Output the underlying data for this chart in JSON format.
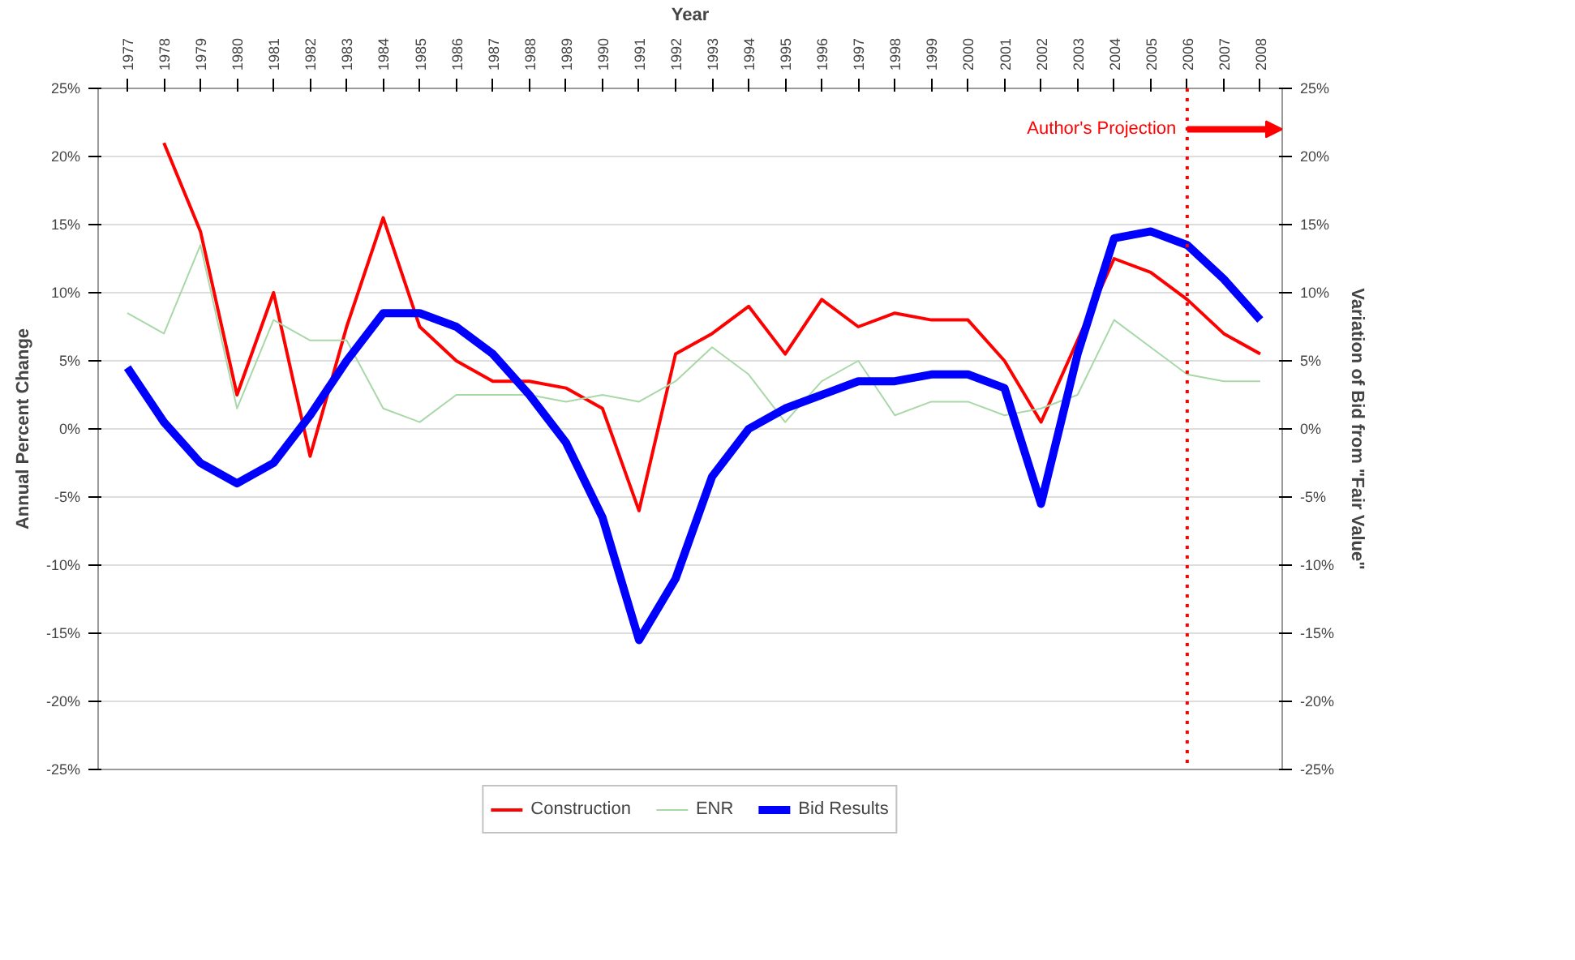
{
  "chart_data": {
    "type": "line",
    "xlabel": "Year",
    "ylabel": "Annual Percent Change",
    "y2label": "Variation of Bid from \"Fair Value\"",
    "x": [
      1977,
      1978,
      1979,
      1980,
      1981,
      1982,
      1983,
      1984,
      1985,
      1986,
      1987,
      1988,
      1989,
      1990,
      1991,
      1992,
      1993,
      1994,
      1995,
      1996,
      1997,
      1998,
      1999,
      2000,
      2001,
      2002,
      2003,
      2004,
      2005,
      2006,
      2007,
      2008
    ],
    "series": [
      {
        "name": "Construction",
        "color": "#ff0000",
        "values": [
          null,
          21,
          14.5,
          2.5,
          10,
          -2,
          7.5,
          15.5,
          7.5,
          5,
          3.5,
          3.5,
          3,
          1.5,
          -6,
          5.5,
          7,
          9,
          5.5,
          9.5,
          7.5,
          8.5,
          8,
          8,
          5,
          0.5,
          6.5,
          12.5,
          11.5,
          9.5,
          7,
          5.5
        ]
      },
      {
        "name": "ENR",
        "color": "#a8d8a8",
        "values": [
          8.5,
          7,
          13.5,
          1.5,
          8,
          6.5,
          6.5,
          1.5,
          0.5,
          2.5,
          2.5,
          2.5,
          2,
          2.5,
          2,
          3.5,
          6,
          4,
          0.5,
          3.5,
          5,
          1,
          2,
          2,
          1,
          1.5,
          2.5,
          8,
          6,
          4,
          3.5,
          3.5
        ]
      },
      {
        "name": "Bid Results",
        "color": "#0000ff",
        "axis": "y2",
        "values": [
          4.5,
          0.5,
          -2.5,
          -4,
          -2.5,
          1,
          5,
          8.5,
          8.5,
          7.5,
          5.5,
          2.5,
          -1,
          -6.5,
          -15.5,
          -11,
          -3.5,
          0,
          1.5,
          2.5,
          3.5,
          3.5,
          4,
          4,
          3,
          -5.5,
          5.5,
          14,
          14.5,
          13.5,
          11,
          8
        ]
      }
    ],
    "xlim": [
      1976.2,
      2008.6
    ],
    "xticks": [
      1977,
      1978,
      1979,
      1980,
      1981,
      1982,
      1983,
      1984,
      1985,
      1986,
      1987,
      1988,
      1989,
      1990,
      1991,
      1992,
      1993,
      1994,
      1995,
      1996,
      1997,
      1998,
      1999,
      2000,
      2001,
      2002,
      2003,
      2004,
      2005,
      2006,
      2007,
      2008
    ],
    "ylim": [
      -25,
      25
    ],
    "yticks": [
      {
        "value": -25,
        "label": "-25%"
      },
      {
        "value": -20,
        "label": "-20%"
      },
      {
        "value": -15,
        "label": "-15%"
      },
      {
        "value": -10,
        "label": "-10%"
      },
      {
        "value": -5,
        "label": "-5%"
      },
      {
        "value": 0,
        "label": "0%"
      },
      {
        "value": 5,
        "label": "5%"
      },
      {
        "value": 10,
        "label": "10%"
      },
      {
        "value": 15,
        "label": "15%"
      },
      {
        "value": 20,
        "label": "20%"
      },
      {
        "value": 25,
        "label": "25%"
      }
    ],
    "y2lim": [
      -25,
      25
    ],
    "y2ticks": [
      {
        "value": -25,
        "label": "-25%"
      },
      {
        "value": -20,
        "label": "-20%"
      },
      {
        "value": -15,
        "label": "-15%"
      },
      {
        "value": -10,
        "label": "-10%"
      },
      {
        "value": -5,
        "label": "-5%"
      },
      {
        "value": 0,
        "label": "0%"
      },
      {
        "value": 5,
        "label": "5%"
      },
      {
        "value": 10,
        "label": "10%"
      },
      {
        "value": 15,
        "label": "15%"
      },
      {
        "value": 20,
        "label": "20%"
      },
      {
        "value": 25,
        "label": "25%"
      }
    ],
    "ref_lines": [
      {
        "axis": "x",
        "value": 2006,
        "color": "#ff0000",
        "line_style": "dotted"
      }
    ],
    "annotations": [
      "Author's Projection"
    ],
    "grid": "y",
    "legend": "bottom",
    "marker": "none",
    "line_style": "solid"
  }
}
